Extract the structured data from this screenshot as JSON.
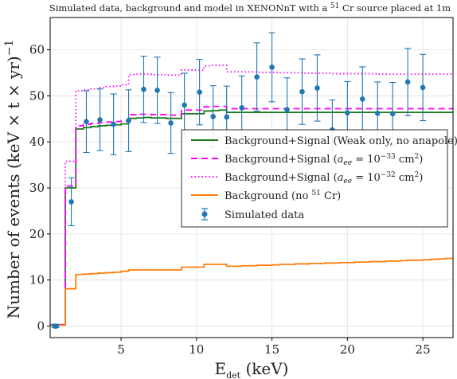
{
  "chart_data": {
    "type": "line",
    "title_parts": {
      "before": "Simulated data, background and model in XENONnT with a ",
      "sup": "51",
      "after": " Cr source placed at 1m"
    },
    "xlabel_parts": {
      "main": "E",
      "sub": "det",
      "after": " (keV)"
    },
    "ylabel_parts": {
      "main": "Number of events (keV × t × yr)",
      "sup": "−1"
    },
    "xlim": [
      0.3,
      27
    ],
    "ylim": [
      -2.5,
      67
    ],
    "xticks": [
      5,
      10,
      15,
      20,
      25
    ],
    "yticks": [
      0,
      10,
      20,
      30,
      40,
      50,
      60
    ],
    "grid": true,
    "legend_position": "center-right",
    "bin_edges": [
      0.3,
      0.8,
      1.3,
      2.0,
      2.5,
      3.0,
      3.5,
      4.0,
      4.5,
      5.0,
      5.5,
      6.0,
      6.5,
      7.0,
      7.5,
      8.0,
      8.5,
      9.0,
      9.5,
      10.0,
      10.5,
      11.0,
      11.5,
      12.0,
      12.5,
      13.0,
      13.5,
      14.0,
      14.5,
      15.0,
      15.5,
      16.0,
      16.5,
      17.0,
      17.5,
      18.0,
      18.5,
      19.0,
      19.5,
      20.0,
      20.5,
      21.0,
      21.5,
      22.0,
      22.5,
      23.0,
      23.5,
      24.0,
      24.5,
      25.0,
      25.5,
      26.0,
      26.5,
      27.0
    ],
    "series": [
      {
        "name": "Background+Signal (Weak only, no anapole)",
        "label_parts": {
          "before": "Background+Signal (Weak only, no anapole)"
        },
        "color": "#1a7a1a",
        "dash": "none",
        "values": [
          0.3,
          0.3,
          30.0,
          42.8,
          43.1,
          43.3,
          43.5,
          43.6,
          43.7,
          43.9,
          45.1,
          45.2,
          45.3,
          45.2,
          45.2,
          45.1,
          45.1,
          46.1,
          46.1,
          46.1,
          46.7,
          46.8,
          46.9,
          46.4,
          46.4,
          46.4,
          46.4,
          46.4,
          46.4,
          46.4,
          46.4,
          46.4,
          46.4,
          46.4,
          46.4,
          46.4,
          46.4,
          46.4,
          46.4,
          46.4,
          46.4,
          46.4,
          46.4,
          46.4,
          46.4,
          46.4,
          46.4,
          46.4,
          46.4,
          46.4,
          46.4,
          46.4,
          46.4
        ]
      },
      {
        "name": "Background+Signal (a_ee = 10^-33 cm^2)",
        "label_parts": {
          "before": "Background+Signal (",
          "var": "a",
          "var_sub": "ee",
          "mid": " = 10",
          "exp": "−33",
          "unit": " cm",
          "unit_sup": "2",
          "after": ")"
        },
        "color": "#ff00ff",
        "dash": "8,5",
        "values": [
          0.3,
          0.3,
          30.4,
          43.5,
          43.8,
          44.0,
          44.2,
          44.3,
          44.4,
          44.6,
          45.9,
          46.0,
          46.0,
          45.9,
          45.9,
          45.8,
          45.8,
          46.9,
          46.9,
          46.9,
          47.6,
          47.7,
          47.7,
          47.2,
          47.2,
          47.2,
          47.2,
          47.2,
          47.2,
          47.2,
          47.2,
          47.2,
          47.2,
          47.2,
          47.2,
          47.2,
          47.2,
          47.2,
          47.2,
          47.2,
          47.2,
          47.2,
          47.2,
          47.2,
          47.2,
          47.2,
          47.2,
          47.2,
          47.2,
          47.2,
          47.2,
          47.2,
          47.2
        ]
      },
      {
        "name": "Background+Signal (a_ee = 10^-32 cm^2)",
        "label_parts": {
          "before": "Background+Signal (",
          "var": "a",
          "var_sub": "ee",
          "mid": " = 10",
          "exp": "−32",
          "unit": " cm",
          "unit_sup": "2",
          "after": ")"
        },
        "color": "#ff00ff",
        "dash": "1.5,3",
        "values": [
          0.3,
          0.3,
          35.8,
          51.1,
          51.3,
          51.5,
          51.8,
          52.0,
          52.1,
          52.4,
          54.6,
          54.7,
          54.7,
          54.6,
          54.6,
          54.5,
          54.5,
          55.6,
          55.6,
          55.6,
          56.5,
          56.6,
          56.6,
          55.2,
          55.2,
          55.2,
          55.2,
          55.1,
          55.1,
          55.1,
          55.0,
          55.0,
          55.0,
          54.9,
          54.9,
          54.9,
          54.9,
          54.8,
          54.8,
          54.8,
          54.8,
          54.8,
          54.8,
          54.7,
          54.7,
          54.7,
          54.7,
          54.7,
          54.7,
          54.7,
          54.7,
          54.7,
          54.7
        ]
      },
      {
        "name": "Background (no 51 Cr)",
        "label_parts": {
          "before": "Background (no ",
          "sup": "51",
          "after": " Cr)"
        },
        "color": "#ff7f0e",
        "dash": "none",
        "values": [
          0.2,
          0.2,
          8.1,
          11.2,
          11.3,
          11.4,
          11.5,
          11.6,
          11.7,
          11.9,
          12.2,
          12.2,
          12.2,
          12.2,
          12.2,
          12.2,
          12.2,
          12.8,
          12.8,
          12.8,
          13.4,
          13.4,
          13.4,
          13.0,
          13.0,
          13.1,
          13.1,
          13.2,
          13.2,
          13.3,
          13.4,
          13.4,
          13.5,
          13.5,
          13.6,
          13.6,
          13.7,
          13.7,
          13.8,
          13.8,
          13.9,
          13.9,
          14.0,
          14.0,
          14.1,
          14.1,
          14.2,
          14.3,
          14.3,
          14.4,
          14.5,
          14.6,
          14.7
        ]
      }
    ],
    "scatter": {
      "name": "Simulated data",
      "color": "#1f77b4",
      "points": [
        {
          "x": 0.6,
          "y": 0.0,
          "err": 0.3
        },
        {
          "x": 0.7,
          "y": 0.0,
          "err": 0.3
        },
        {
          "x": 1.7,
          "y": 27.0,
          "err": 5.2
        },
        {
          "x": 2.7,
          "y": 44.4,
          "err": 6.7
        },
        {
          "x": 3.6,
          "y": 44.8,
          "err": 6.7
        },
        {
          "x": 4.5,
          "y": 43.8,
          "err": 6.6
        },
        {
          "x": 5.5,
          "y": 44.6,
          "err": 6.7
        },
        {
          "x": 6.5,
          "y": 51.4,
          "err": 7.2
        },
        {
          "x": 7.4,
          "y": 51.2,
          "err": 7.2
        },
        {
          "x": 8.3,
          "y": 44.1,
          "err": 6.6
        },
        {
          "x": 9.2,
          "y": 48.0,
          "err": 6.9
        },
        {
          "x": 10.2,
          "y": 50.8,
          "err": 7.1
        },
        {
          "x": 11.1,
          "y": 45.5,
          "err": 6.7
        },
        {
          "x": 12.0,
          "y": 45.4,
          "err": 6.7
        },
        {
          "x": 13.0,
          "y": 47.4,
          "err": 6.9
        },
        {
          "x": 14.0,
          "y": 54.1,
          "err": 7.4
        },
        {
          "x": 15.0,
          "y": 56.2,
          "err": 7.5
        },
        {
          "x": 16.0,
          "y": 47.0,
          "err": 6.9
        },
        {
          "x": 17.0,
          "y": 50.9,
          "err": 7.1
        },
        {
          "x": 18.0,
          "y": 51.7,
          "err": 7.2
        },
        {
          "x": 19.0,
          "y": 42.6,
          "err": 6.5
        },
        {
          "x": 20.0,
          "y": 46.3,
          "err": 6.8
        },
        {
          "x": 21.0,
          "y": 49.3,
          "err": 7.0
        },
        {
          "x": 22.0,
          "y": 46.2,
          "err": 6.8
        },
        {
          "x": 23.0,
          "y": 46.1,
          "err": 6.8
        },
        {
          "x": 24.0,
          "y": 53.0,
          "err": 7.3
        },
        {
          "x": 25.0,
          "y": 51.8,
          "err": 7.2
        }
      ]
    }
  }
}
